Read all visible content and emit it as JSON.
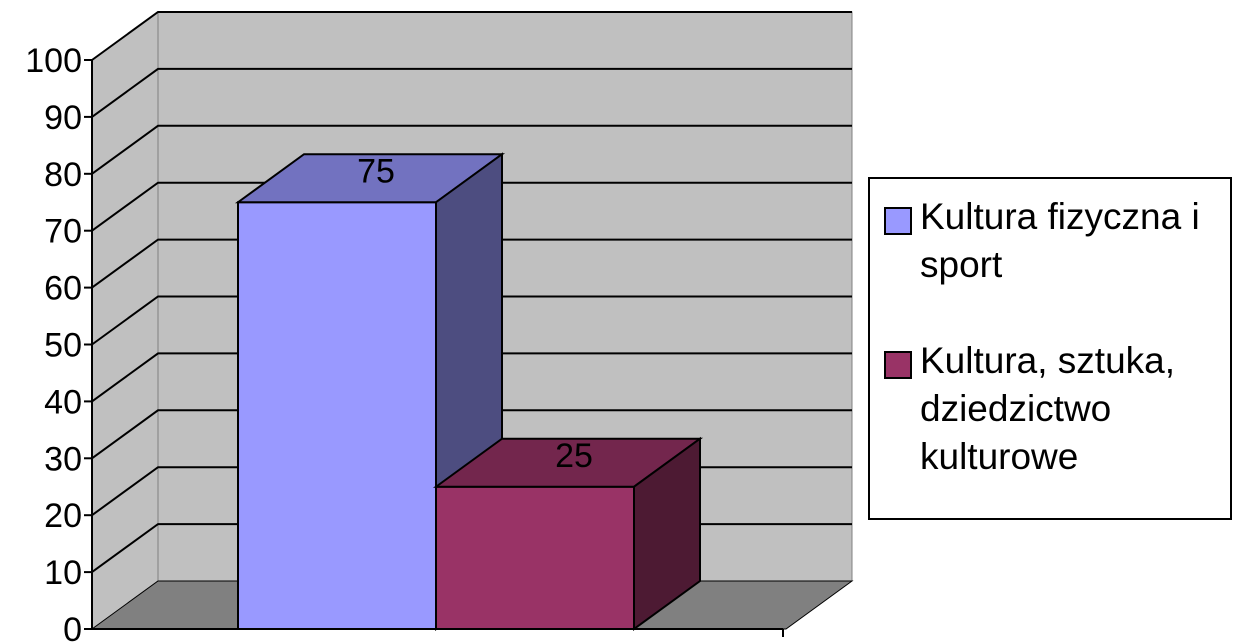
{
  "chart_data": {
    "type": "bar",
    "three_d": true,
    "categories": [
      ""
    ],
    "series": [
      {
        "name": "Kultura fizyczna i sport",
        "values": [
          75
        ],
        "color": "#9999ff",
        "side_color": "#4d4d80",
        "top_color": "#7272c0"
      },
      {
        "name": "Kultura, sztuka, dziedzictwo kulturowe",
        "values": [
          25
        ],
        "color": "#993366",
        "side_color": "#4d1a33",
        "top_color": "#73264d"
      }
    ],
    "data_labels": [
      "75",
      "25"
    ],
    "ylim": [
      0,
      100
    ],
    "yticks": [
      "0",
      "10",
      "20",
      "30",
      "40",
      "50",
      "60",
      "70",
      "80",
      "90",
      "100"
    ],
    "grid": true,
    "legend_position": "right",
    "wall_color": "#c0c0c0",
    "floor_color": "#808080",
    "title": "",
    "xlabel": "",
    "ylabel": ""
  }
}
